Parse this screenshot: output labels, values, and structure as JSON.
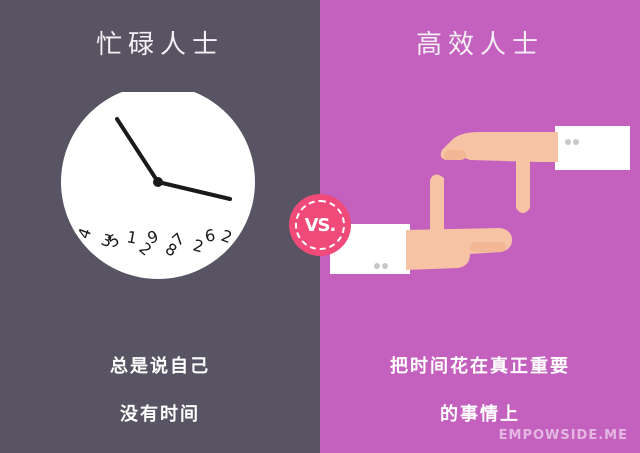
{
  "left": {
    "title": "忙碌人士",
    "caption_line1": "总是说自己",
    "caption_line2": "没有时间",
    "background": "#585463"
  },
  "right": {
    "title": "高效人士",
    "caption_line1": "把时间花在真正重要",
    "caption_line2": "的事情上",
    "background": "#c461bf"
  },
  "badge": {
    "text": "VS.",
    "color": "#ef4a78"
  },
  "clock": {
    "icon": "messy-clock-icon",
    "scrambled_digits": [
      "4",
      "3",
      "5",
      "1",
      "2",
      "9",
      "8",
      "7",
      "2",
      "6",
      "2"
    ]
  },
  "hands": {
    "icon": "frame-hands-icon"
  },
  "watermark": "EMPOWSIDE.ME"
}
